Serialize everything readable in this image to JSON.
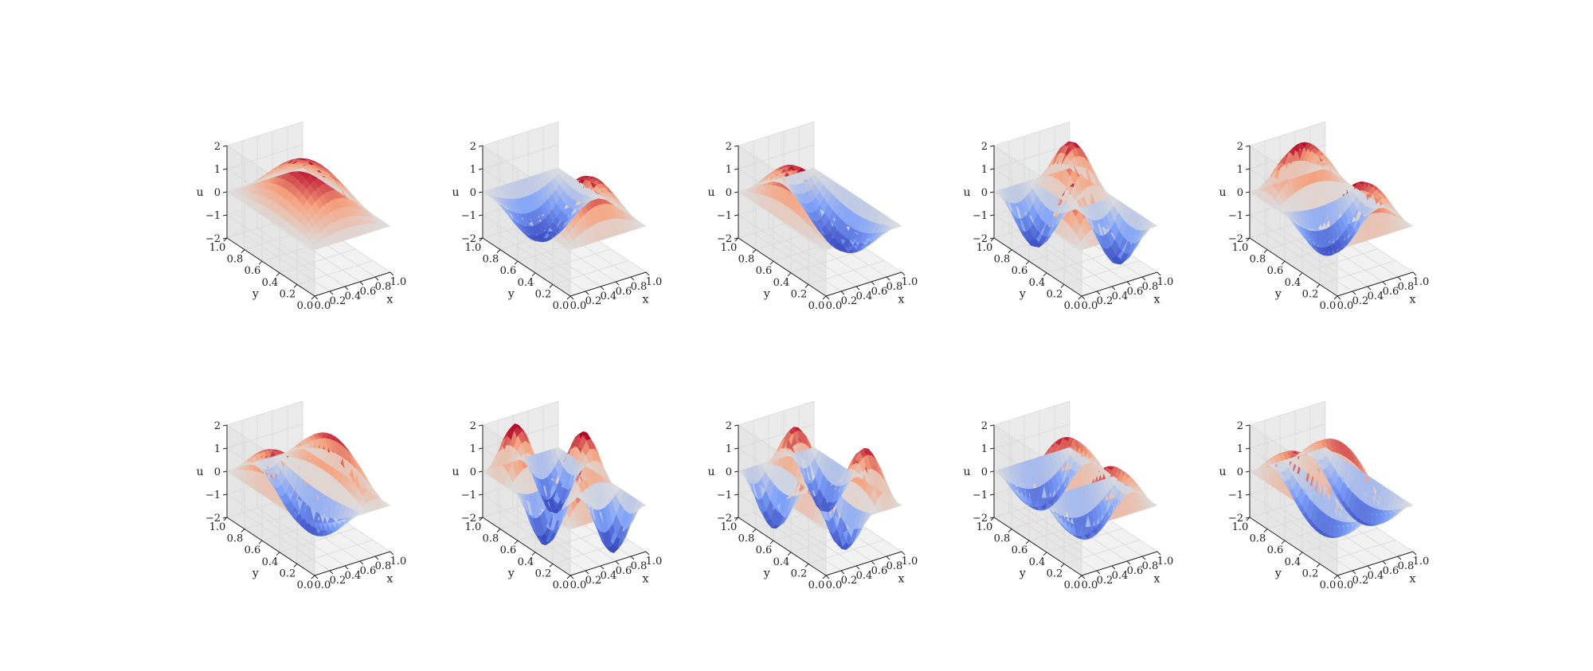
{
  "chart_data": [
    {
      "type": "surface3d",
      "mode": [
        1,
        1
      ],
      "zlabel": "u",
      "xlabel": "x",
      "ylabel": "y",
      "xticks": [
        "0.0",
        "0.2",
        "0.4",
        "0.6",
        "0.8",
        "1.0"
      ],
      "yticks": [
        "0.0",
        "0.2",
        "0.4",
        "0.6",
        "0.8",
        "1.0"
      ],
      "zticks": [
        "−2",
        "−1",
        "0",
        "1",
        "2"
      ],
      "xlim": [
        0,
        1
      ],
      "ylim": [
        0,
        1
      ],
      "zlim": [
        -2,
        2
      ],
      "amplitude": 2.0,
      "colormap": "coolwarm",
      "grid": true
    },
    {
      "type": "surface3d",
      "mode": [
        1,
        2
      ],
      "zlabel": "u",
      "xlabel": "x",
      "ylabel": "y",
      "xticks": [
        "0.0",
        "0.2",
        "0.4",
        "0.6",
        "0.8",
        "1.0"
      ],
      "yticks": [
        "0.0",
        "0.2",
        "0.4",
        "0.6",
        "0.8",
        "1.0"
      ],
      "zticks": [
        "−2",
        "−1",
        "0",
        "1",
        "2"
      ],
      "xlim": [
        0,
        1
      ],
      "ylim": [
        0,
        1
      ],
      "zlim": [
        -2,
        2
      ],
      "amplitude": 2.0,
      "colormap": "coolwarm",
      "grid": true
    },
    {
      "type": "surface3d",
      "mode": [
        2,
        1
      ],
      "zlabel": "u",
      "xlabel": "x",
      "ylabel": "y",
      "xticks": [
        "0.0",
        "0.2",
        "0.4",
        "0.6",
        "0.8",
        "1.0"
      ],
      "yticks": [
        "0.0",
        "0.2",
        "0.4",
        "0.6",
        "0.8",
        "1.0"
      ],
      "zticks": [
        "−2",
        "−1",
        "0",
        "1",
        "2"
      ],
      "xlim": [
        0,
        1
      ],
      "ylim": [
        0,
        1
      ],
      "zlim": [
        -2,
        2
      ],
      "amplitude": 2.0,
      "colormap": "coolwarm",
      "grid": true
    },
    {
      "type": "surface3d",
      "mode": [
        2,
        2
      ],
      "zlabel": "u",
      "xlabel": "x",
      "ylabel": "y",
      "xticks": [
        "0.0",
        "0.2",
        "0.4",
        "0.6",
        "0.8",
        "1.0"
      ],
      "yticks": [
        "0.0",
        "0.2",
        "0.4",
        "0.6",
        "0.8",
        "1.0"
      ],
      "zticks": [
        "−2",
        "−1",
        "0",
        "1",
        "2"
      ],
      "xlim": [
        0,
        1
      ],
      "ylim": [
        0,
        1
      ],
      "zlim": [
        -2,
        2
      ],
      "amplitude": 2.0,
      "colormap": "coolwarm",
      "grid": true
    },
    {
      "type": "surface3d",
      "mode": [
        1,
        3
      ],
      "zlabel": "u",
      "xlabel": "x",
      "ylabel": "y",
      "xticks": [
        "0.0",
        "0.2",
        "0.4",
        "0.6",
        "0.8",
        "1.0"
      ],
      "yticks": [
        "0.0",
        "0.2",
        "0.4",
        "0.6",
        "0.8",
        "1.0"
      ],
      "zticks": [
        "−2",
        "−1",
        "0",
        "1",
        "2"
      ],
      "xlim": [
        0,
        1
      ],
      "ylim": [
        0,
        1
      ],
      "zlim": [
        -2,
        2
      ],
      "amplitude": 2.0,
      "colormap": "coolwarm",
      "grid": true
    },
    {
      "type": "surface3d",
      "mode": [
        3,
        1
      ],
      "zlabel": "u",
      "xlabel": "x",
      "ylabel": "y",
      "xticks": [
        "0.0",
        "0.2",
        "0.4",
        "0.6",
        "0.8",
        "1.0"
      ],
      "yticks": [
        "0.0",
        "0.2",
        "0.4",
        "0.6",
        "0.8",
        "1.0"
      ],
      "zticks": [
        "−2",
        "−1",
        "0",
        "1",
        "2"
      ],
      "xlim": [
        0,
        1
      ],
      "ylim": [
        0,
        1
      ],
      "zlim": [
        -2,
        2
      ],
      "amplitude": 1.9,
      "colormap": "coolwarm",
      "grid": true
    },
    {
      "type": "surface3d",
      "mode": [
        2,
        3
      ],
      "zlabel": "u",
      "xlabel": "x",
      "ylabel": "y",
      "xticks": [
        "0.0",
        "0.2",
        "0.4",
        "0.6",
        "0.8",
        "1.0"
      ],
      "yticks": [
        "0.0",
        "0.2",
        "0.4",
        "0.6",
        "0.8",
        "1.0"
      ],
      "zticks": [
        "−2",
        "−1",
        "0",
        "1",
        "2"
      ],
      "xlim": [
        0,
        1
      ],
      "ylim": [
        0,
        1
      ],
      "zlim": [
        -2,
        2
      ],
      "amplitude": 2.2,
      "colormap": "coolwarm",
      "grid": true
    },
    {
      "type": "surface3d",
      "mode": [
        3,
        2
      ],
      "zlabel": "u",
      "xlabel": "x",
      "ylabel": "y",
      "xticks": [
        "0.0",
        "0.2",
        "0.4",
        "0.6",
        "0.8",
        "1.0"
      ],
      "yticks": [
        "0.0",
        "0.2",
        "0.4",
        "0.6",
        "0.8",
        "1.0"
      ],
      "zticks": [
        "−2",
        "−1",
        "0",
        "1",
        "2"
      ],
      "xlim": [
        0,
        1
      ],
      "ylim": [
        0,
        1
      ],
      "zlim": [
        -2,
        2
      ],
      "amplitude": 2.0,
      "colormap": "coolwarm",
      "grid": true
    },
    {
      "type": "surface3d",
      "mode": [
        1,
        4
      ],
      "zlabel": "u",
      "xlabel": "x",
      "ylabel": "y",
      "xticks": [
        "0.0",
        "0.2",
        "0.4",
        "0.6",
        "0.8",
        "1.0"
      ],
      "yticks": [
        "0.0",
        "0.2",
        "0.4",
        "0.6",
        "0.8",
        "1.0"
      ],
      "zticks": [
        "−2",
        "−1",
        "0",
        "1",
        "2"
      ],
      "xlim": [
        0,
        1
      ],
      "ylim": [
        0,
        1
      ],
      "zlim": [
        -2,
        2
      ],
      "amplitude": 1.9,
      "colormap": "coolwarm",
      "grid": true
    },
    {
      "type": "surface3d",
      "mode": [
        4,
        1
      ],
      "zlabel": "u",
      "xlabel": "x",
      "ylabel": "y",
      "xticks": [
        "0.0",
        "0.2",
        "0.4",
        "0.6",
        "0.8",
        "1.0"
      ],
      "yticks": [
        "0.0",
        "0.2",
        "0.4",
        "0.6",
        "0.8",
        "1.0"
      ],
      "zticks": [
        "−2",
        "−1",
        "0",
        "1",
        "2"
      ],
      "xlim": [
        0,
        1
      ],
      "ylim": [
        0,
        1
      ],
      "zlim": [
        -2,
        2
      ],
      "amplitude": 1.9,
      "colormap": "coolwarm",
      "grid": true
    }
  ]
}
